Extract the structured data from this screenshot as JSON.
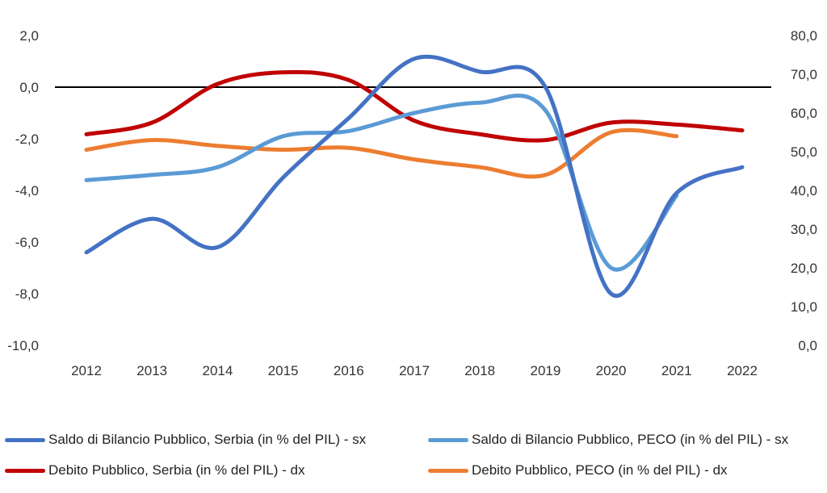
{
  "chart_data": {
    "type": "line",
    "categories": [
      "2012",
      "2013",
      "2014",
      "2015",
      "2016",
      "2017",
      "2018",
      "2019",
      "2020",
      "2021",
      "2022"
    ],
    "left_axis": {
      "ticks": [
        "2,0",
        "0,0",
        "-2,0",
        "-4,0",
        "-6,0",
        "-8,0",
        "-10,0"
      ],
      "ylim": [
        -10,
        2
      ]
    },
    "right_axis": {
      "ticks": [
        "80,0",
        "70,0",
        "60,0",
        "50,0",
        "40,0",
        "30,0",
        "20,0",
        "10,0",
        "0,0"
      ],
      "ylim": [
        0,
        80
      ]
    },
    "zero_line": true,
    "grid": false,
    "legend_placement": "bottom",
    "series": [
      {
        "name": "Saldo di Bilancio Pubblico, Serbia (in % del PIL) - sx",
        "axis": "left",
        "color": "#4472C4",
        "values": [
          -6.4,
          -5.1,
          -6.2,
          -3.5,
          -1.2,
          1.1,
          0.6,
          0.0,
          -8.0,
          -4.1,
          -3.1
        ]
      },
      {
        "name": "Saldo di Bilancio Pubblico, PECO (in % del PIL) - sx",
        "axis": "left",
        "color": "#5B9BD5",
        "values": [
          -3.6,
          -3.4,
          -3.1,
          -1.9,
          -1.7,
          -1.0,
          -0.6,
          -0.9,
          -7.0,
          -4.2,
          null
        ]
      },
      {
        "name": "Debito Pubblico, Serbia (in % del PIL) - dx",
        "axis": "right",
        "color": "#C00000",
        "values": [
          54.5,
          57.5,
          67.5,
          70.5,
          68.5,
          58.0,
          54.5,
          53.0,
          57.5,
          57.0,
          55.5
        ]
      },
      {
        "name": "Debito Pubblico, PECO (in % del PIL) - dx",
        "axis": "right",
        "color": "#ED7D31",
        "values": [
          50.5,
          53.0,
          51.5,
          50.5,
          51.0,
          48.0,
          46.0,
          44.0,
          55.0,
          54.0,
          null
        ]
      }
    ]
  }
}
